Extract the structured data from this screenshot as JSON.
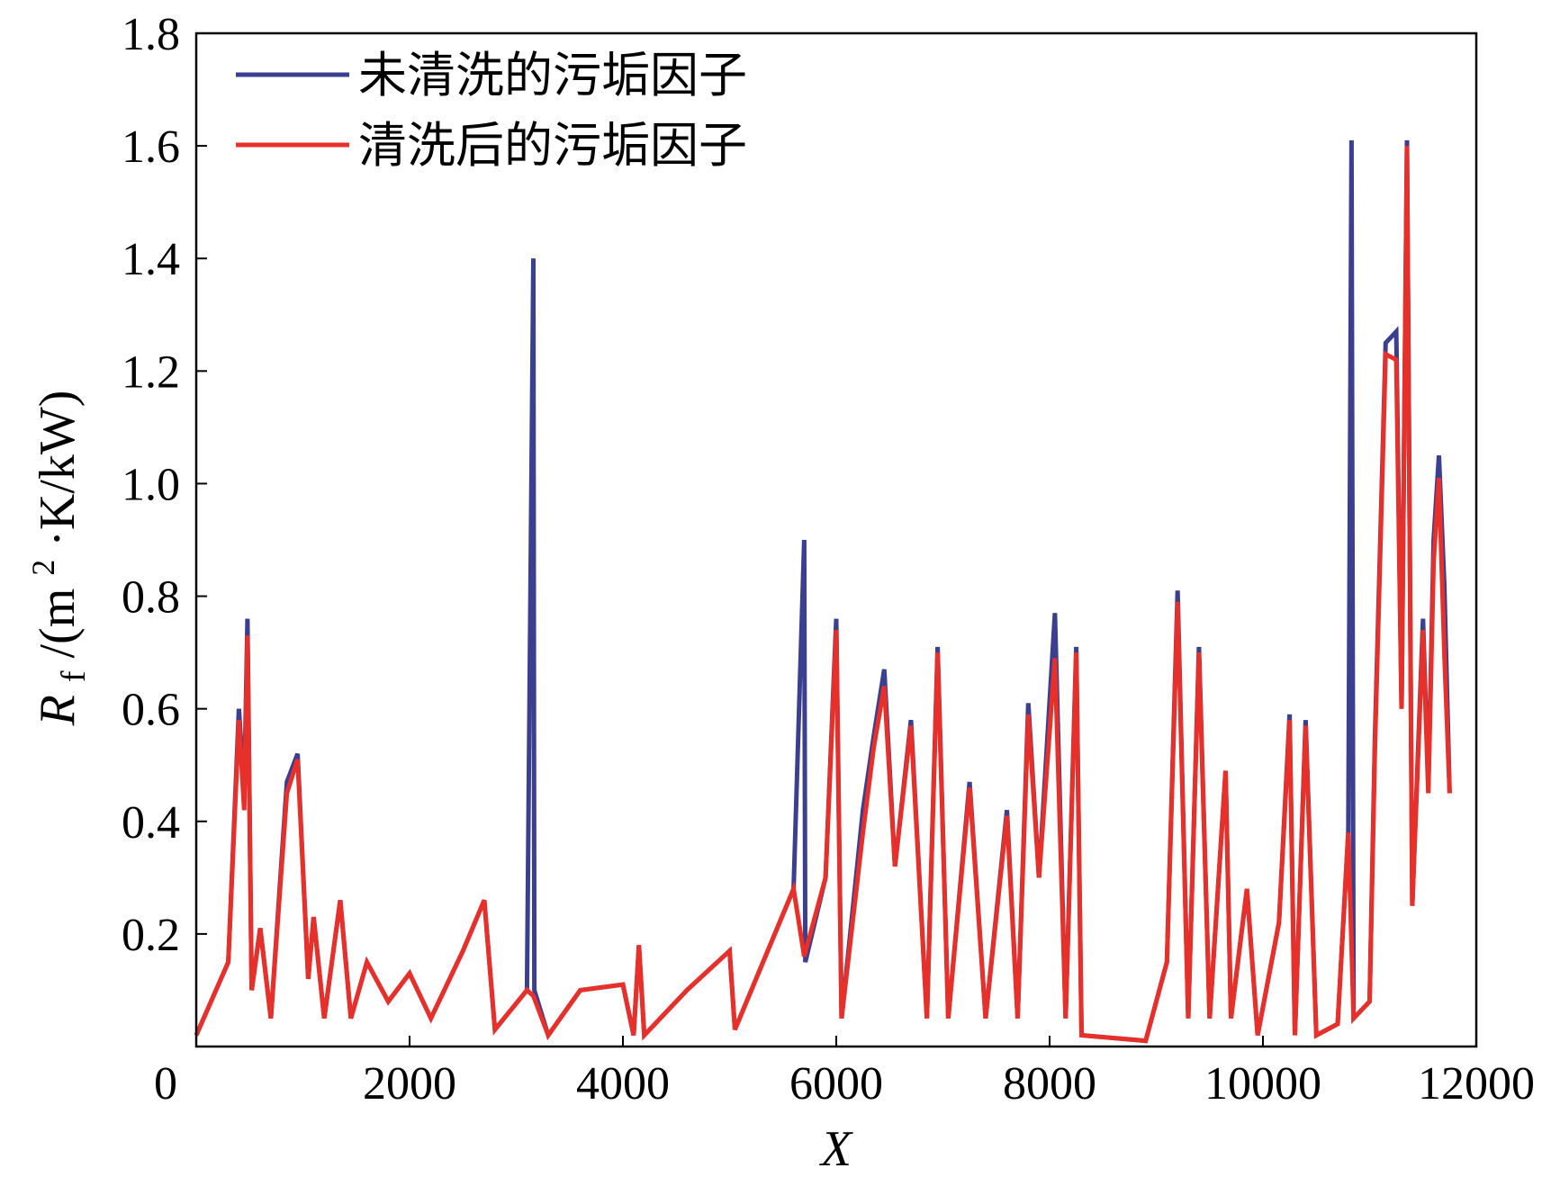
{
  "chart_data": {
    "type": "line",
    "title": "",
    "xlabel": "X",
    "ylabel_main": "R",
    "ylabel_sub": "f",
    "ylabel_rest": "/(m",
    "ylabel_sup": "2",
    "ylabel_tail": "·K/kW)",
    "xlim": [
      0,
      12000
    ],
    "ylim": [
      0,
      1.8
    ],
    "x_ticks": [
      "0",
      "2000",
      "4000",
      "6000",
      "8000",
      "10000",
      "12000"
    ],
    "x_tick_values": [
      0,
      2000,
      4000,
      6000,
      8000,
      10000,
      12000
    ],
    "y_ticks": [
      "0.2",
      "0.4",
      "0.6",
      "0.8",
      "1.0",
      "1.2",
      "1.4",
      "1.6",
      "1.8"
    ],
    "y_tick_values": [
      0.2,
      0.4,
      0.6,
      0.8,
      1.0,
      1.2,
      1.4,
      1.6,
      1.8
    ],
    "grid": false,
    "legend_position": "top-left",
    "series": [
      {
        "name": "未清洗的污垢因子",
        "color": "#3b3f8f",
        "points": [
          [
            0,
            0.02
          ],
          [
            300,
            0.15
          ],
          [
            400,
            0.6
          ],
          [
            450,
            0.45
          ],
          [
            480,
            0.76
          ],
          [
            520,
            0.1
          ],
          [
            600,
            0.21
          ],
          [
            700,
            0.05
          ],
          [
            850,
            0.47
          ],
          [
            950,
            0.52
          ],
          [
            1050,
            0.12
          ],
          [
            1100,
            0.23
          ],
          [
            1200,
            0.05
          ],
          [
            1350,
            0.26
          ],
          [
            1450,
            0.05
          ],
          [
            1600,
            0.15
          ],
          [
            1800,
            0.08
          ],
          [
            2000,
            0.13
          ],
          [
            2200,
            0.05
          ],
          [
            2500,
            0.17
          ],
          [
            2700,
            0.26
          ],
          [
            2800,
            0.03
          ],
          [
            3100,
            0.1
          ],
          [
            3160,
            1.4
          ],
          [
            3170,
            0.1
          ],
          [
            3300,
            0.02
          ],
          [
            3600,
            0.1
          ],
          [
            4000,
            0.11
          ],
          [
            4100,
            0.02
          ],
          [
            4150,
            0.18
          ],
          [
            4200,
            0.02
          ],
          [
            4600,
            0.1
          ],
          [
            5000,
            0.17
          ],
          [
            5050,
            0.03
          ],
          [
            5600,
            0.28
          ],
          [
            5700,
            0.9
          ],
          [
            5710,
            0.15
          ],
          [
            5900,
            0.3
          ],
          [
            6000,
            0.76
          ],
          [
            6050,
            0.05
          ],
          [
            6250,
            0.42
          ],
          [
            6350,
            0.55
          ],
          [
            6450,
            0.67
          ],
          [
            6550,
            0.32
          ],
          [
            6700,
            0.58
          ],
          [
            6850,
            0.05
          ],
          [
            6950,
            0.71
          ],
          [
            7050,
            0.05
          ],
          [
            7250,
            0.47
          ],
          [
            7400,
            0.05
          ],
          [
            7600,
            0.42
          ],
          [
            7700,
            0.05
          ],
          [
            7800,
            0.61
          ],
          [
            7900,
            0.3
          ],
          [
            8050,
            0.77
          ],
          [
            8150,
            0.05
          ],
          [
            8250,
            0.71
          ],
          [
            8300,
            0.02
          ],
          [
            8900,
            0.01
          ],
          [
            9100,
            0.15
          ],
          [
            9200,
            0.81
          ],
          [
            9300,
            0.05
          ],
          [
            9400,
            0.71
          ],
          [
            9500,
            0.05
          ],
          [
            9650,
            0.49
          ],
          [
            9700,
            0.05
          ],
          [
            9850,
            0.28
          ],
          [
            9950,
            0.02
          ],
          [
            10150,
            0.22
          ],
          [
            10250,
            0.59
          ],
          [
            10300,
            0.02
          ],
          [
            10400,
            0.58
          ],
          [
            10500,
            0.02
          ],
          [
            10700,
            0.04
          ],
          [
            10800,
            0.38
          ],
          [
            10830,
            1.61
          ],
          [
            10850,
            0.05
          ],
          [
            11000,
            0.08
          ],
          [
            11050,
            0.55
          ],
          [
            11150,
            1.25
          ],
          [
            11250,
            1.27
          ],
          [
            11300,
            0.6
          ],
          [
            11350,
            1.61
          ],
          [
            11400,
            0.25
          ],
          [
            11500,
            0.76
          ],
          [
            11550,
            0.46
          ],
          [
            11600,
            0.9
          ],
          [
            11650,
            1.05
          ],
          [
            11700,
            0.82
          ],
          [
            11750,
            0.45
          ]
        ]
      },
      {
        "name": "清洗后的污垢因子",
        "color": "#e8302a",
        "points": [
          [
            0,
            0.02
          ],
          [
            300,
            0.15
          ],
          [
            400,
            0.58
          ],
          [
            450,
            0.42
          ],
          [
            480,
            0.73
          ],
          [
            520,
            0.1
          ],
          [
            600,
            0.21
          ],
          [
            700,
            0.05
          ],
          [
            850,
            0.45
          ],
          [
            950,
            0.51
          ],
          [
            1050,
            0.12
          ],
          [
            1100,
            0.23
          ],
          [
            1200,
            0.05
          ],
          [
            1350,
            0.26
          ],
          [
            1450,
            0.05
          ],
          [
            1600,
            0.15
          ],
          [
            1800,
            0.08
          ],
          [
            2000,
            0.13
          ],
          [
            2200,
            0.05
          ],
          [
            2500,
            0.17
          ],
          [
            2700,
            0.26
          ],
          [
            2800,
            0.03
          ],
          [
            3100,
            0.1
          ],
          [
            3160,
            0.09
          ],
          [
            3300,
            0.02
          ],
          [
            3600,
            0.1
          ],
          [
            4000,
            0.11
          ],
          [
            4100,
            0.02
          ],
          [
            4150,
            0.18
          ],
          [
            4200,
            0.02
          ],
          [
            4600,
            0.1
          ],
          [
            5000,
            0.17
          ],
          [
            5050,
            0.03
          ],
          [
            5600,
            0.28
          ],
          [
            5700,
            0.16
          ],
          [
            5900,
            0.3
          ],
          [
            6000,
            0.74
          ],
          [
            6050,
            0.05
          ],
          [
            6250,
            0.38
          ],
          [
            6350,
            0.53
          ],
          [
            6450,
            0.64
          ],
          [
            6550,
            0.32
          ],
          [
            6700,
            0.57
          ],
          [
            6850,
            0.05
          ],
          [
            6950,
            0.7
          ],
          [
            7050,
            0.05
          ],
          [
            7250,
            0.46
          ],
          [
            7400,
            0.05
          ],
          [
            7600,
            0.41
          ],
          [
            7700,
            0.05
          ],
          [
            7800,
            0.59
          ],
          [
            7900,
            0.3
          ],
          [
            8050,
            0.69
          ],
          [
            8150,
            0.05
          ],
          [
            8250,
            0.7
          ],
          [
            8300,
            0.02
          ],
          [
            8900,
            0.01
          ],
          [
            9100,
            0.15
          ],
          [
            9200,
            0.79
          ],
          [
            9300,
            0.05
          ],
          [
            9400,
            0.7
          ],
          [
            9500,
            0.05
          ],
          [
            9650,
            0.49
          ],
          [
            9700,
            0.05
          ],
          [
            9850,
            0.28
          ],
          [
            9950,
            0.02
          ],
          [
            10150,
            0.22
          ],
          [
            10250,
            0.58
          ],
          [
            10300,
            0.02
          ],
          [
            10400,
            0.57
          ],
          [
            10500,
            0.02
          ],
          [
            10700,
            0.04
          ],
          [
            10800,
            0.38
          ],
          [
            10850,
            0.05
          ],
          [
            11000,
            0.08
          ],
          [
            11050,
            0.53
          ],
          [
            11150,
            1.23
          ],
          [
            11250,
            1.22
          ],
          [
            11300,
            0.6
          ],
          [
            11350,
            1.6
          ],
          [
            11400,
            0.25
          ],
          [
            11500,
            0.74
          ],
          [
            11550,
            0.45
          ],
          [
            11600,
            0.86
          ],
          [
            11650,
            1.01
          ],
          [
            11700,
            0.7
          ],
          [
            11750,
            0.45
          ]
        ]
      }
    ]
  }
}
